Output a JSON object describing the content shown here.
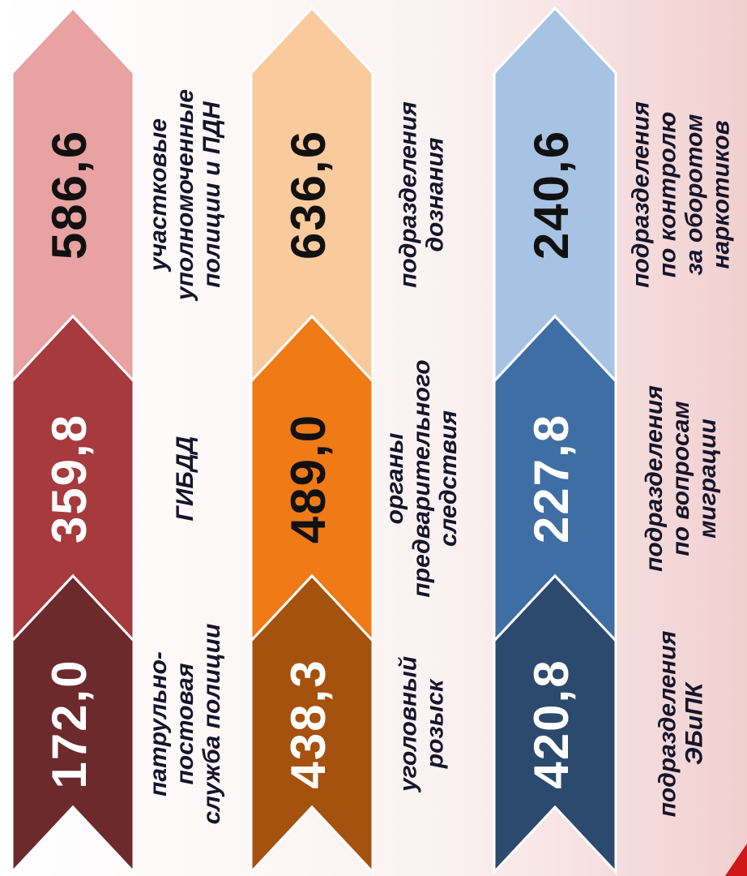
{
  "groups": [
    {
      "items": [
        {
          "value": "586,6",
          "label": [
            "участковые",
            "уполномоченные",
            "полиции и ПДН"
          ]
        },
        {
          "value": "359,8",
          "label": [
            "ГИБДД"
          ]
        },
        {
          "value": "172,0",
          "label": [
            "патрульно-",
            "постовая",
            "служба полиции"
          ]
        }
      ]
    },
    {
      "items": [
        {
          "value": "636,6",
          "label": [
            "подразделения",
            "дознания"
          ]
        },
        {
          "value": "489,0",
          "label": [
            "органы",
            "предварительного",
            "следствия"
          ]
        },
        {
          "value": "438,3",
          "label": [
            "уголовный",
            "розыск"
          ]
        }
      ]
    },
    {
      "items": [
        {
          "value": "240,6",
          "label": [
            "подразделения",
            "по контролю",
            "за оборотом",
            "наркотиков"
          ]
        },
        {
          "value": "227,8",
          "label": [
            "подразделения",
            "по вопросам",
            "миграции"
          ]
        },
        {
          "value": "420,8",
          "label": [
            "подразделения",
            "ЭБиПК"
          ]
        }
      ]
    }
  ]
}
